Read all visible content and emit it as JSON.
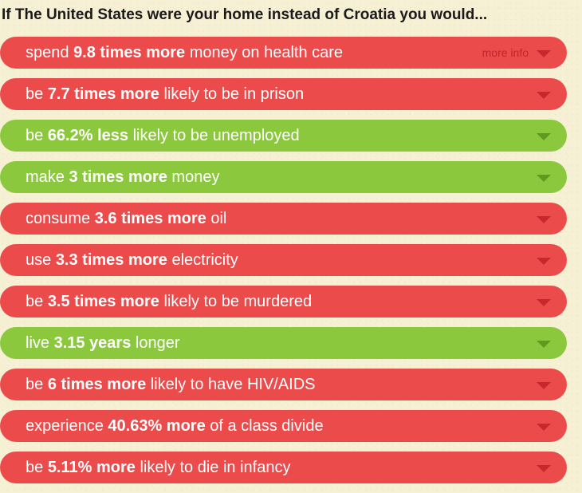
{
  "heading": "If The United States were your home instead of Croatia you would...",
  "more_info_label": "more info",
  "colors": {
    "bad": "#ec4b4c",
    "good": "#8cc83e"
  },
  "items": [
    {
      "pre": "spend",
      "bold": "9.8 times more",
      "post": "money on health care",
      "tone": "bad"
    },
    {
      "pre": "be",
      "bold": "7.7 times more",
      "post": "likely to be in prison",
      "tone": "bad"
    },
    {
      "pre": "be",
      "bold": "66.2% less",
      "post": "likely to be unemployed",
      "tone": "good"
    },
    {
      "pre": "make",
      "bold": "3 times more",
      "post": "money",
      "tone": "good"
    },
    {
      "pre": "consume",
      "bold": "3.6 times more",
      "post": "oil",
      "tone": "bad"
    },
    {
      "pre": "use",
      "bold": "3.3 times more",
      "post": "electricity",
      "tone": "bad"
    },
    {
      "pre": "be",
      "bold": "3.5 times more",
      "post": "likely to be murdered",
      "tone": "bad"
    },
    {
      "pre": "live",
      "bold": "3.15 years",
      "post": "longer",
      "tone": "good"
    },
    {
      "pre": "be",
      "bold": "6 times more",
      "post": "likely to have HIV/AIDS",
      "tone": "bad"
    },
    {
      "pre": "experience",
      "bold": "40.63% more",
      "post": "of a class divide",
      "tone": "bad"
    },
    {
      "pre": "be",
      "bold": "5.11% more",
      "post": "likely to die in infancy",
      "tone": "bad"
    }
  ]
}
